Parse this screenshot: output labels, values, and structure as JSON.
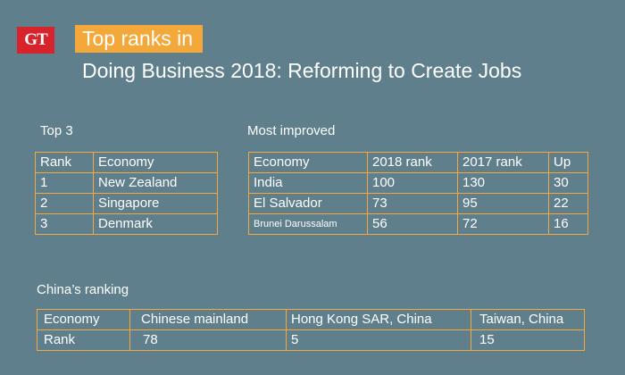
{
  "logo": "GT",
  "badge": "Top ranks in",
  "title": "Doing Business 2018: Reforming to Create Jobs",
  "top3": {
    "label": "Top 3",
    "header": [
      "Rank",
      "Economy"
    ],
    "rows": [
      [
        "1",
        "New Zealand"
      ],
      [
        "2",
        "Singapore"
      ],
      [
        "3",
        "Denmark"
      ]
    ]
  },
  "improved": {
    "label": "Most improved",
    "header": [
      "Economy",
      "2018 rank",
      "2017 rank",
      "Up"
    ],
    "rows": [
      [
        "India",
        "100",
        "130",
        "30"
      ],
      [
        "El Salvador",
        "73",
        "95",
        "22"
      ],
      [
        "Brunei Darussalam",
        "56",
        "72",
        "16"
      ]
    ]
  },
  "china": {
    "label": "China’s ranking",
    "header": [
      "Economy",
      "Chinese mainland",
      "Hong Kong SAR, China",
      "Taiwan, China"
    ],
    "row": [
      "Rank",
      "78",
      "5",
      "15"
    ]
  },
  "colors": {
    "background": "#5e7f8b",
    "accent": "#f4a83a",
    "logo": "#d7232c"
  }
}
